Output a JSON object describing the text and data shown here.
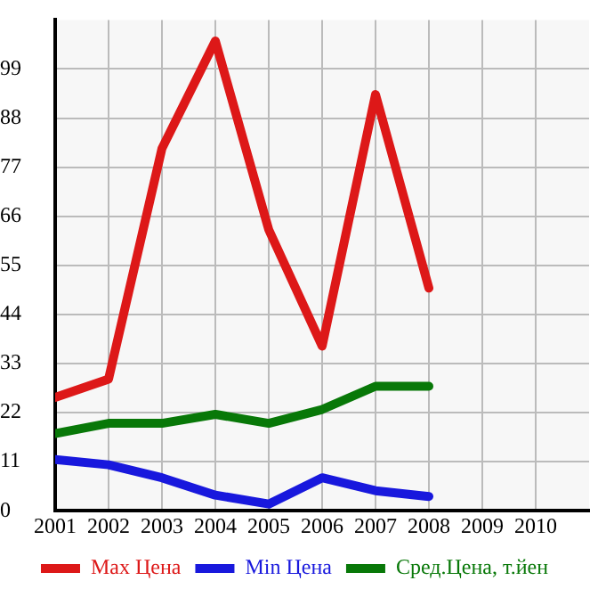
{
  "chart_data": {
    "type": "line",
    "x": [
      2001,
      2002,
      2003,
      2004,
      2005,
      2006,
      2007,
      2008
    ],
    "series": [
      {
        "name": "Max Цена",
        "color": "#dd1818",
        "values": [
          25.4,
          29.5,
          81.2,
          105.3,
          63,
          36.9,
          93.3,
          49.9
        ]
      },
      {
        "name": "Min Цена",
        "color": "#1818dd",
        "values": [
          11.5,
          10.3,
          7.4,
          3.5,
          1.5,
          7.4,
          4.5,
          3.2
        ]
      },
      {
        "name": "Сред.Цена, т.йен",
        "color": "#087808",
        "values": [
          17.3,
          19.6,
          19.6,
          21.6,
          19.6,
          22.7,
          27.9,
          27.9
        ]
      }
    ],
    "xlim": [
      2001,
      2011
    ],
    "xticks": [
      2001,
      2002,
      2003,
      2004,
      2005,
      2006,
      2007,
      2008,
      2009,
      2010
    ],
    "ylim": [
      0,
      110
    ],
    "yticks": [
      0,
      11,
      22,
      33,
      44,
      55,
      66,
      77,
      88,
      99
    ],
    "grid": true,
    "legend": "bottom",
    "marker": "none",
    "line_style": "solid"
  }
}
